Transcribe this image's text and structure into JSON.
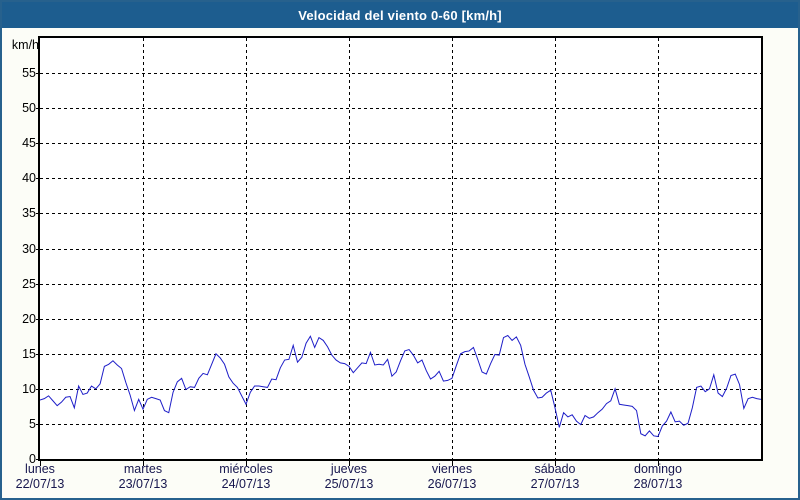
{
  "header": {
    "title": "Velocidad del viento 0-60 [km/h]"
  },
  "colors": {
    "titlebar_bg": "#1d5d8f",
    "window_border": "#27618d",
    "page_bg": "#fcfdf7",
    "plot_bg": "#ffffff",
    "grid": "#000000",
    "line": "#1e1ec8",
    "x_label_text": "#16164e",
    "y_label_text": "#000000",
    "title_text": "#ffffff"
  },
  "chart_data": {
    "type": "line",
    "title": "Velocidad del viento 0-60 [km/h]",
    "ylabel": "km/h",
    "ylim": [
      0,
      60
    ],
    "y_tick_step": 5,
    "y_tick_labels": [
      0,
      5,
      10,
      15,
      20,
      25,
      30,
      35,
      40,
      45,
      50,
      55
    ],
    "grid": "dashed",
    "legend": "none",
    "x_categories": [
      {
        "day": "lunes",
        "date": "22/07/13"
      },
      {
        "day": "martes",
        "date": "23/07/13"
      },
      {
        "day": "miércoles",
        "date": "24/07/13"
      },
      {
        "day": "jueves",
        "date": "25/07/13"
      },
      {
        "day": "viernes",
        "date": "26/07/13"
      },
      {
        "day": "sábado",
        "date": "27/07/13"
      },
      {
        "day": "domingo",
        "date": "28/07/13"
      }
    ],
    "sample_interval_hours": 1,
    "series": [
      {
        "name": "Velocidad del viento",
        "color": "#1e1ec8",
        "values": [
          8.4,
          8.6,
          9.0,
          8.3,
          7.6,
          8.1,
          8.8,
          8.9,
          7.3,
          10.4,
          9.2,
          9.4,
          10.4,
          10.0,
          10.7,
          13.2,
          13.5,
          14.0,
          13.4,
          12.9,
          10.9,
          9.1,
          6.9,
          8.5,
          7.1,
          8.5,
          8.8,
          8.6,
          8.4,
          6.9,
          6.6,
          9.5,
          11.0,
          11.5,
          9.9,
          10.3,
          10.2,
          11.5,
          12.2,
          12.0,
          13.5,
          15.0,
          14.4,
          13.5,
          11.7,
          10.8,
          10.2,
          9.0,
          7.8,
          9.5,
          10.4,
          10.4,
          10.3,
          10.2,
          11.4,
          11.3,
          13.0,
          14.1,
          14.2,
          16.2,
          13.8,
          14.5,
          16.5,
          17.5,
          15.9,
          17.3,
          16.9,
          16.0,
          14.8,
          14.1,
          13.7,
          13.6,
          13.2,
          12.3,
          13.0,
          13.7,
          13.6,
          15.2,
          13.4,
          13.5,
          13.4,
          14.2,
          11.8,
          12.4,
          14.0,
          15.4,
          15.6,
          14.8,
          13.7,
          14.1,
          12.6,
          11.4,
          11.8,
          12.5,
          11.1,
          11.2,
          11.5,
          13.3,
          15.0,
          15.3,
          15.4,
          15.9,
          14.2,
          12.4,
          12.1,
          13.6,
          14.9,
          14.8,
          17.3,
          17.6,
          16.9,
          17.4,
          16.2,
          13.5,
          11.7,
          9.8,
          8.7,
          8.8,
          9.4,
          9.8,
          7.3,
          4.5,
          6.6,
          6.0,
          6.3,
          5.4,
          4.9,
          6.2,
          5.8,
          6.0,
          6.6,
          7.1,
          7.9,
          8.3,
          10.0,
          7.8,
          7.7,
          7.6,
          7.5,
          6.9,
          3.6,
          3.3,
          4.0,
          3.3,
          3.2,
          4.7,
          5.4,
          6.7,
          5.3,
          5.4,
          4.8,
          5.1,
          7.3,
          10.2,
          10.4,
          9.6,
          10.0,
          12.0,
          9.4,
          8.9,
          10.1,
          11.9,
          12.1,
          10.6,
          7.2,
          8.6,
          8.8,
          8.6,
          8.5
        ]
      }
    ]
  }
}
